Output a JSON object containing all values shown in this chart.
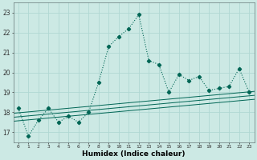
{
  "title": "",
  "xlabel": "Humidex (Indice chaleur)",
  "background_color": "#cce9e4",
  "grid_color": "#b0d8d3",
  "line_color": "#006655",
  "xlim": [
    -0.5,
    23.5
  ],
  "ylim": [
    16.5,
    23.5
  ],
  "yticks": [
    17,
    18,
    19,
    20,
    21,
    22,
    23
  ],
  "xticks": [
    0,
    1,
    2,
    3,
    4,
    5,
    6,
    7,
    8,
    9,
    10,
    11,
    12,
    13,
    14,
    15,
    16,
    17,
    18,
    19,
    20,
    21,
    22,
    23
  ],
  "main_series": [
    18.2,
    16.8,
    17.6,
    18.2,
    17.5,
    17.8,
    17.5,
    18.0,
    19.5,
    21.3,
    21.8,
    22.2,
    22.9,
    20.6,
    20.4,
    19.0,
    19.9,
    19.6,
    19.8,
    19.1,
    19.2,
    19.3,
    20.2,
    19.0
  ],
  "trend_lines": [
    {
      "start": 17.95,
      "end": 19.05
    },
    {
      "start": 17.75,
      "end": 18.85
    },
    {
      "start": 17.55,
      "end": 18.65
    }
  ]
}
